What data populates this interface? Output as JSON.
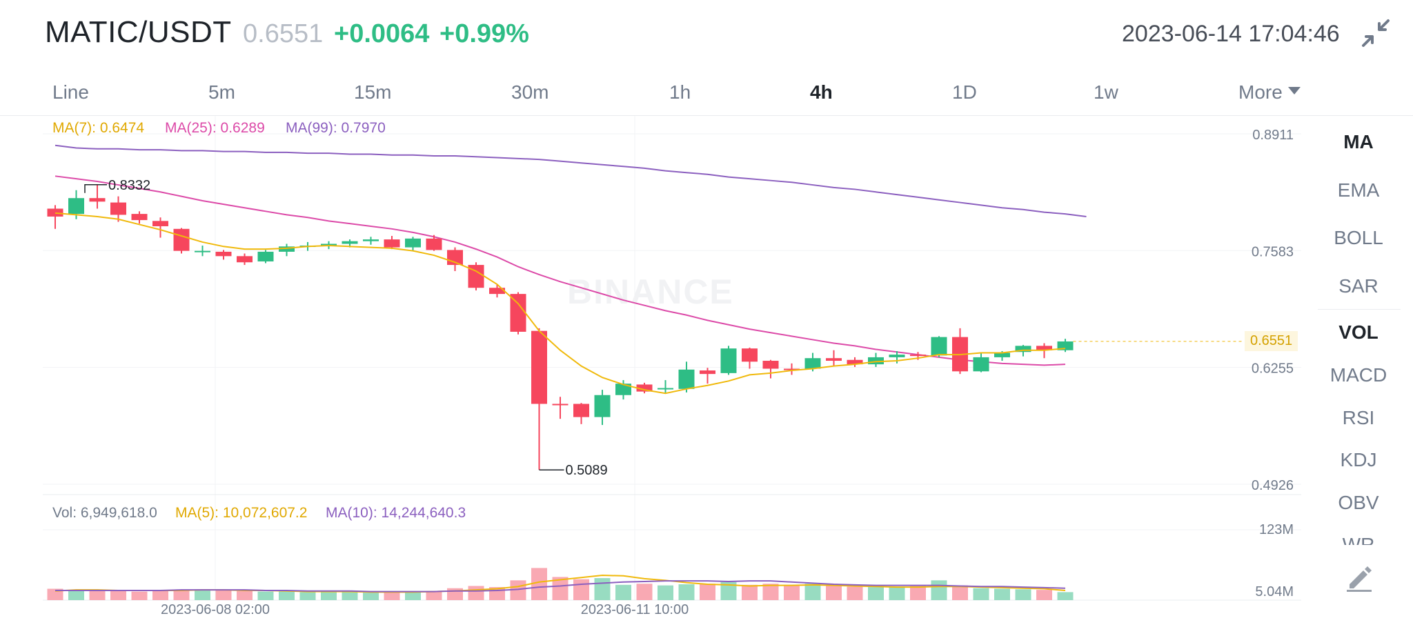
{
  "header": {
    "pair": "MATIC/USDT",
    "last_price": "0.6551",
    "change": "+0.0064",
    "change_pct": "+0.99%",
    "datetime": "2023-06-14 17:04:46",
    "collapse_icon": "collapse-icon"
  },
  "tabs": [
    {
      "label": "Line",
      "active": false
    },
    {
      "label": "5m",
      "active": false
    },
    {
      "label": "15m",
      "active": false
    },
    {
      "label": "30m",
      "active": false
    },
    {
      "label": "1h",
      "active": false
    },
    {
      "label": "4h",
      "active": true
    },
    {
      "label": "1D",
      "active": false
    },
    {
      "label": "1w",
      "active": false
    },
    {
      "label": "More",
      "active": false
    }
  ],
  "legend": {
    "ma7": "MA(7): 0.6474",
    "ma25": "MA(25): 0.6289",
    "ma99": "MA(99): 0.7970",
    "vol": "Vol: 6,949,618.0",
    "vol_ma5": "MA(5): 10,072,607.2",
    "vol_ma10": "MA(10): 14,244,640.3"
  },
  "colors": {
    "up": "#2ebd85",
    "down": "#f6465d",
    "ma7": "#f0b90b",
    "ma25": "#dc4aa8",
    "ma99": "#8b5fbf",
    "up_vol": "#98dcc1",
    "down_vol": "#f9a9b3"
  },
  "indicators": [
    {
      "label": "MA",
      "on": true
    },
    {
      "label": "EMA",
      "on": false
    },
    {
      "label": "BOLL",
      "on": false
    },
    {
      "label": "SAR",
      "on": false
    },
    {
      "label": "VOL",
      "on": true
    },
    {
      "label": "MACD",
      "on": false
    },
    {
      "label": "RSI",
      "on": false
    },
    {
      "label": "KDJ",
      "on": false
    },
    {
      "label": "OBV",
      "on": false
    },
    {
      "label": "WR",
      "on": false
    }
  ],
  "pen_icon": "pencil-icon",
  "watermark": "BINANCE",
  "chart_data": {
    "type": "candlestick",
    "price_axis": {
      "labels": [
        "0.8911",
        "0.7583",
        "0.6255",
        "0.4926"
      ],
      "range": [
        0.4926,
        0.8911
      ]
    },
    "volume_axis": {
      "labels": [
        "123M",
        "5.04M"
      ],
      "range_m": [
        5.04,
        123
      ]
    },
    "current_price_label": "0.6551",
    "annotations": {
      "high": "0.8332",
      "low": "0.5089"
    },
    "x_labels": [
      "2023-06-08 02:00",
      "2023-06-11 10:00"
    ],
    "candles": [
      [
        0.806,
        0.81,
        0.783,
        0.797
      ],
      [
        0.8,
        0.827,
        0.794,
        0.818
      ],
      [
        0.818,
        0.833,
        0.806,
        0.814
      ],
      [
        0.813,
        0.82,
        0.791,
        0.799
      ],
      [
        0.8,
        0.803,
        0.789,
        0.793
      ],
      [
        0.792,
        0.796,
        0.773,
        0.786
      ],
      [
        0.783,
        0.784,
        0.755,
        0.758
      ],
      [
        0.758,
        0.764,
        0.752,
        0.758
      ],
      [
        0.757,
        0.759,
        0.748,
        0.752
      ],
      [
        0.752,
        0.755,
        0.742,
        0.745
      ],
      [
        0.746,
        0.759,
        0.744,
        0.757
      ],
      [
        0.757,
        0.766,
        0.752,
        0.763
      ],
      [
        0.763,
        0.768,
        0.758,
        0.764
      ],
      [
        0.764,
        0.769,
        0.76,
        0.766
      ],
      [
        0.766,
        0.771,
        0.762,
        0.769
      ],
      [
        0.769,
        0.774,
        0.765,
        0.771
      ],
      [
        0.771,
        0.775,
        0.76,
        0.762
      ],
      [
        0.762,
        0.774,
        0.758,
        0.772
      ],
      [
        0.772,
        0.776,
        0.758,
        0.759
      ],
      [
        0.759,
        0.762,
        0.735,
        0.742
      ],
      [
        0.742,
        0.745,
        0.713,
        0.716
      ],
      [
        0.716,
        0.72,
        0.705,
        0.709
      ],
      [
        0.709,
        0.711,
        0.663,
        0.666
      ],
      [
        0.667,
        0.67,
        0.509,
        0.584
      ],
      [
        0.584,
        0.592,
        0.567,
        0.583
      ],
      [
        0.584,
        0.585,
        0.561,
        0.569
      ],
      [
        0.569,
        0.6,
        0.56,
        0.594
      ],
      [
        0.594,
        0.611,
        0.589,
        0.607
      ],
      [
        0.606,
        0.608,
        0.596,
        0.598
      ],
      [
        0.602,
        0.611,
        0.596,
        0.602
      ],
      [
        0.601,
        0.632,
        0.597,
        0.623
      ],
      [
        0.622,
        0.625,
        0.607,
        0.618
      ],
      [
        0.619,
        0.65,
        0.617,
        0.647
      ],
      [
        0.647,
        0.648,
        0.624,
        0.632
      ],
      [
        0.633,
        0.634,
        0.613,
        0.624
      ],
      [
        0.624,
        0.63,
        0.617,
        0.623
      ],
      [
        0.624,
        0.642,
        0.621,
        0.636
      ],
      [
        0.636,
        0.645,
        0.627,
        0.633
      ],
      [
        0.634,
        0.637,
        0.626,
        0.629
      ],
      [
        0.629,
        0.642,
        0.626,
        0.637
      ],
      [
        0.637,
        0.644,
        0.63,
        0.64
      ],
      [
        0.64,
        0.643,
        0.634,
        0.639
      ],
      [
        0.639,
        0.661,
        0.637,
        0.66
      ],
      [
        0.66,
        0.67,
        0.618,
        0.621
      ],
      [
        0.621,
        0.642,
        0.62,
        0.637
      ],
      [
        0.637,
        0.644,
        0.633,
        0.642
      ],
      [
        0.643,
        0.651,
        0.638,
        0.65
      ],
      [
        0.65,
        0.653,
        0.636,
        0.645
      ],
      [
        0.645,
        0.658,
        0.643,
        0.655
      ]
    ],
    "ma7": [
      0.801,
      0.799,
      0.797,
      0.794,
      0.788,
      0.782,
      0.775,
      0.768,
      0.763,
      0.76,
      0.76,
      0.761,
      0.763,
      0.764,
      0.763,
      0.762,
      0.761,
      0.758,
      0.753,
      0.745,
      0.735,
      0.72,
      0.698,
      0.667,
      0.645,
      0.627,
      0.614,
      0.606,
      0.6,
      0.596,
      0.601,
      0.605,
      0.61,
      0.617,
      0.619,
      0.622,
      0.624,
      0.627,
      0.629,
      0.632,
      0.633,
      0.636,
      0.64,
      0.64,
      0.642,
      0.642,
      0.645,
      0.645,
      0.647
    ],
    "ma25": [
      0.843,
      0.84,
      0.837,
      0.833,
      0.829,
      0.825,
      0.82,
      0.815,
      0.811,
      0.807,
      0.803,
      0.799,
      0.796,
      0.792,
      0.789,
      0.786,
      0.783,
      0.779,
      0.774,
      0.768,
      0.76,
      0.751,
      0.74,
      0.731,
      0.723,
      0.716,
      0.709,
      0.702,
      0.696,
      0.69,
      0.685,
      0.679,
      0.674,
      0.669,
      0.665,
      0.661,
      0.657,
      0.653,
      0.65,
      0.646,
      0.643,
      0.64,
      0.637,
      0.634,
      0.632,
      0.63,
      0.629,
      0.628,
      0.629
    ],
    "ma99": [
      0.875,
      0.874,
      0.874,
      0.873,
      0.873,
      0.872,
      0.872,
      0.871,
      0.871,
      0.87,
      0.87,
      0.869,
      0.869,
      0.868,
      0.868,
      0.867,
      0.867,
      0.866,
      0.866,
      0.865,
      0.864,
      0.863,
      0.862,
      0.86,
      0.858,
      0.856,
      0.854,
      0.852,
      0.849,
      0.847,
      0.845,
      0.842,
      0.84,
      0.838,
      0.836,
      0.833,
      0.83,
      0.828,
      0.825,
      0.822,
      0.819,
      0.816,
      0.813,
      0.81,
      0.807,
      0.805,
      0.802,
      0.8,
      0.797
    ],
    "volume_m": [
      13,
      9,
      11,
      10,
      8,
      10,
      11,
      12,
      10,
      9,
      8,
      8,
      7,
      7,
      7,
      6,
      8,
      7,
      9,
      14,
      18,
      16,
      28,
      50,
      34,
      30,
      32,
      20,
      22,
      19,
      21,
      22,
      25,
      20,
      22,
      20,
      22,
      20,
      17,
      16,
      17,
      18,
      28,
      19,
      14,
      13,
      12,
      11,
      7
    ],
    "vol_ma5": [
      9,
      11,
      11,
      10,
      10,
      10,
      10,
      11,
      11,
      10,
      10,
      9,
      8,
      8,
      8,
      7,
      7,
      7,
      8,
      9,
      11,
      13,
      17,
      25,
      29,
      33,
      37,
      36,
      31,
      28,
      24,
      21,
      20,
      18,
      19,
      19,
      20,
      19,
      18,
      17,
      16,
      16,
      17,
      17,
      16,
      15,
      14,
      13,
      10
    ],
    "vol_ma10": [
      10,
      10,
      10,
      10,
      10,
      10,
      11,
      11,
      11,
      11,
      10,
      10,
      9,
      9,
      9,
      8,
      8,
      8,
      8,
      9,
      9,
      10,
      12,
      16,
      18,
      21,
      23,
      25,
      26,
      27,
      27,
      27,
      26,
      27,
      27,
      25,
      23,
      21,
      20,
      19,
      19,
      19,
      19,
      18,
      17,
      17,
      16,
      15,
      14
    ]
  }
}
